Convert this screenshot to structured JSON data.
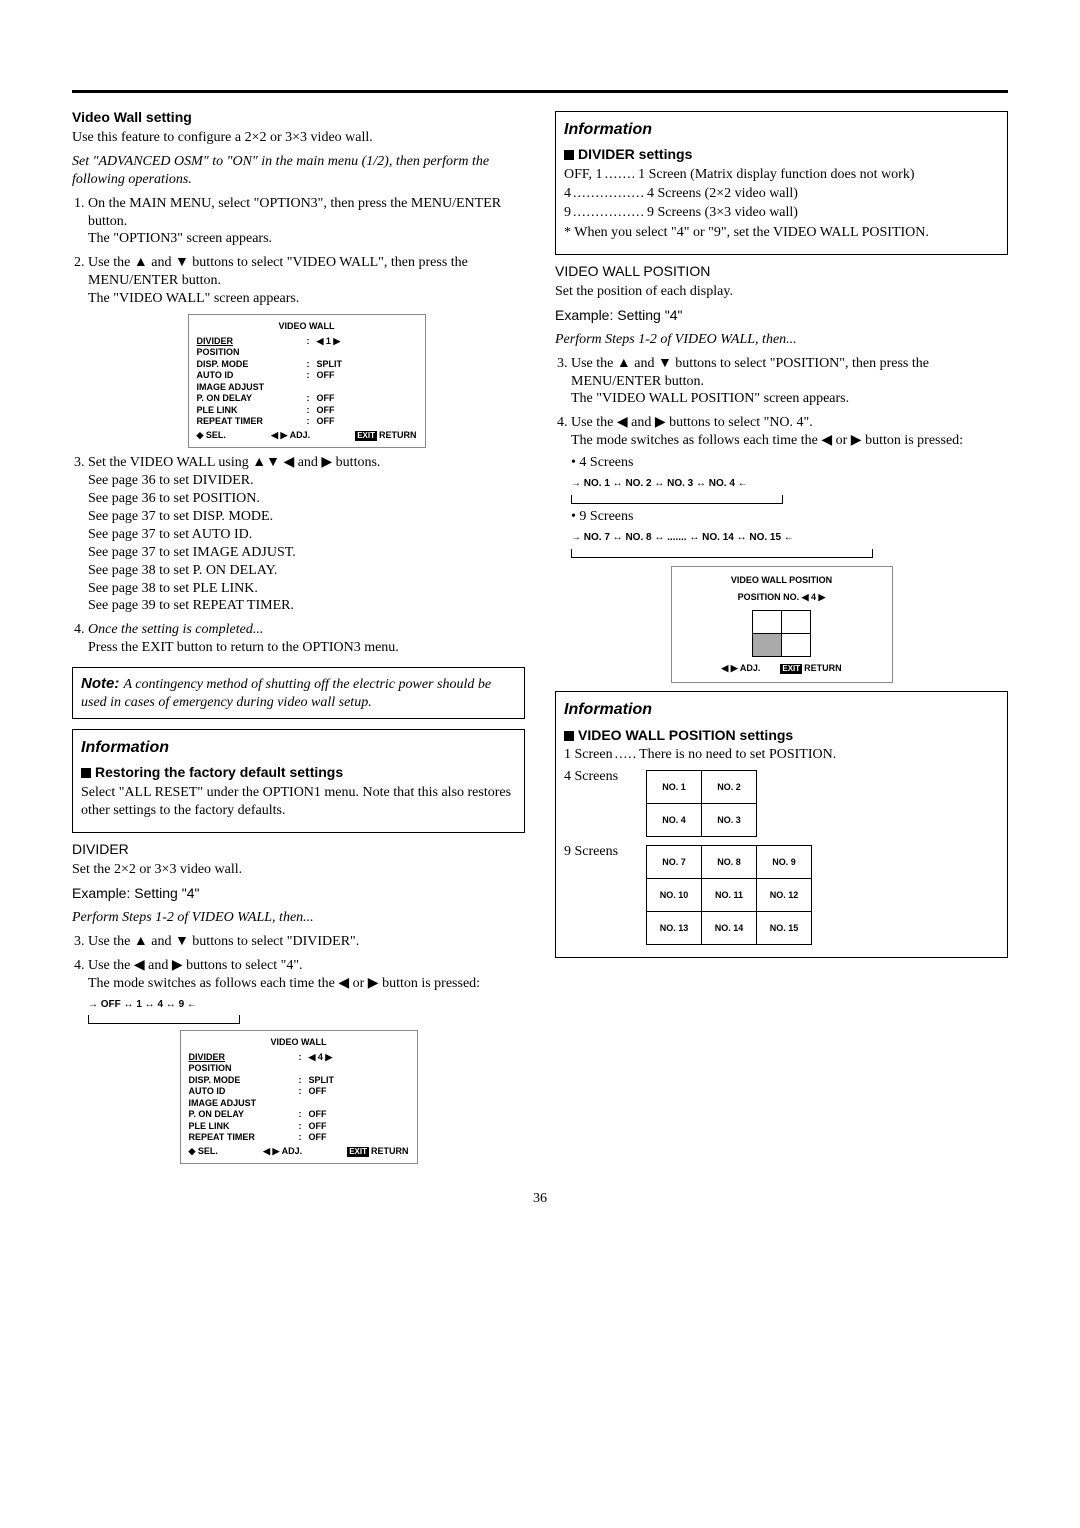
{
  "page_number": "36",
  "left": {
    "heading": "Video Wall setting",
    "intro": "Use this feature to configure a 2×2 or 3×3 video wall.",
    "precond": "Set \"ADVANCED OSM\" to \"ON\" in the main menu (1/2), then perform the following operations.",
    "step1a": "On the MAIN MENU, select \"OPTION3\", then press the MENU/ENTER button.",
    "step1b": "The \"OPTION3\" screen appears.",
    "step2a": "Use the ▲ and ▼ buttons to select \"VIDEO WALL\", then press the MENU/ENTER button.",
    "step2b": "The \"VIDEO WALL\" screen appears.",
    "step3a": "Set the VIDEO WALL using ▲▼ ◀ and ▶ buttons.",
    "step3_lines": [
      "See page 36 to set DIVIDER.",
      "See page 36 to set POSITION.",
      "See page 37 to set DISP. MODE.",
      "See page 37 to set AUTO ID.",
      "See page 37 to set IMAGE ADJUST.",
      "See page 38 to set P. ON DELAY.",
      "See page 38 to set PLE LINK.",
      "See page 39 to set REPEAT TIMER."
    ],
    "step4a": "Once the setting is completed...",
    "step4b": "Press the EXIT  button to return to the OPTION3 menu.",
    "note": "A contingency method of shutting off the electric power should be used in cases of emergency during video wall setup.",
    "info_title": "Information",
    "restore_h": "Restoring the factory default settings",
    "restore": "Select \"ALL RESET\" under the OPTION1 menu. Note that this also restores other settings to the factory defaults.",
    "divider_h": "DIVIDER",
    "divider_p1": "Set the 2×2 or 3×3 video wall.",
    "example4": "Example: Setting \"4\"",
    "perform": "Perform  Steps 1-2 of VIDEO WALL, then...",
    "div_step3": "Use the ▲ and ▼ buttons to select \"DIVIDER\".",
    "div_step4a": "Use the ◀ and ▶ buttons to select \"4\".",
    "div_step4b": "The mode switches as follows each time the ◀ or ▶ button is pressed:",
    "div_cycle": "→ OFF  ↔ 1  ↔ 4  ↔ 9 ←"
  },
  "osd1": {
    "title": "VIDEO WALL",
    "rows": [
      {
        "k": "DIVIDER",
        "c": ":",
        "v": "◀ 1 ▶",
        "u": true
      },
      {
        "k": "POSITION",
        "c": "",
        "v": ""
      },
      {
        "k": "DISP. MODE",
        "c": ":",
        "v": "SPLIT"
      },
      {
        "k": "AUTO ID",
        "c": ":",
        "v": "OFF"
      },
      {
        "k": "IMAGE ADJUST",
        "c": "",
        "v": ""
      },
      {
        "k": "P. ON DELAY",
        "c": ":",
        "v": "OFF"
      },
      {
        "k": "PLE LINK",
        "c": ":",
        "v": "OFF"
      },
      {
        "k": "REPEAT TIMER",
        "c": ":",
        "v": "OFF"
      }
    ],
    "foot_sel": "◆ SEL.",
    "foot_adj": "◀ ▶ ADJ.",
    "foot_exit": "EXIT",
    "foot_ret": "RETURN"
  },
  "osd2": {
    "title": "VIDEO WALL",
    "rows": [
      {
        "k": "DIVIDER",
        "c": ":",
        "v": "◀ 4 ▶",
        "u": true
      },
      {
        "k": "POSITION",
        "c": "",
        "v": ""
      },
      {
        "k": "DISP. MODE",
        "c": ":",
        "v": "SPLIT"
      },
      {
        "k": "AUTO ID",
        "c": ":",
        "v": "OFF"
      },
      {
        "k": "IMAGE ADJUST",
        "c": "",
        "v": ""
      },
      {
        "k": "P. ON DELAY",
        "c": ":",
        "v": "OFF"
      },
      {
        "k": "PLE LINK",
        "c": ":",
        "v": "OFF"
      },
      {
        "k": "REPEAT TIMER",
        "c": ":",
        "v": "OFF"
      }
    ]
  },
  "right": {
    "info_title": "Information",
    "divset_h": "DIVIDER settings",
    "d1k": "OFF, 1",
    "d1f": ".......",
    "d1v": "1 Screen (Matrix display function does not work)",
    "d2k": "4",
    "d2f": "................",
    "d2v": "4 Screens (2×2 video wall)",
    "d3k": "9",
    "d3f": "................",
    "d3v": "9 Screens (3×3 video wall)",
    "dnote": "* When you select \"4\" or \"9\", set the VIDEO WALL POSITION.",
    "vwp_h": "VIDEO WALL POSITION",
    "vwp_p": "Set the position of each display.",
    "example4": "Example: Setting \"4\"",
    "perform": "Perform  Steps 1-2 of VIDEO WALL, then...",
    "p_step3a": "Use the ▲ and ▼ buttons to select \"POSITION\", then press the MENU/ENTER button.",
    "p_step3b": "The \"VIDEO WALL POSITION\" screen appears.",
    "p_step4a": "Use the ◀ and ▶ buttons to select \"NO. 4\".",
    "p_step4b": "The mode switches as follows each time the ◀ or ▶ button is pressed:",
    "bullet4": "• 4 Screens",
    "cycle4": "→ NO. 1 ↔ NO. 2  ↔ NO. 3  ↔ NO. 4 ←",
    "bullet9": "• 9 Screens",
    "cycle9": "→ NO. 7 ↔ NO. 8  ↔  .......  ↔ NO. 14  ↔ NO. 15 ←",
    "pos_osd_title": "VIDEO WALL POSITION",
    "pos_osd_row": "POSITION NO.  ◀ 4 ▶",
    "pos_foot_adj": "◀ ▶ ADJ.",
    "pos_foot_exit": "EXIT",
    "pos_foot_ret": "RETURN",
    "info2_title": "Information",
    "vwps_h": "VIDEO WALL POSITION settings",
    "s1k": "1 Screen",
    "s1f": ".....",
    "s1v": "There is no need to set POSITION.",
    "s4": "4 Screens",
    "s9": "9 Screens",
    "g4": [
      "NO. 1",
      "NO. 2",
      "NO. 4",
      "NO. 3"
    ],
    "g9": [
      "NO. 7",
      "NO. 8",
      "NO. 9",
      "NO. 10",
      "NO. 11",
      "NO. 12",
      "NO. 13",
      "NO. 14",
      "NO. 15"
    ]
  }
}
